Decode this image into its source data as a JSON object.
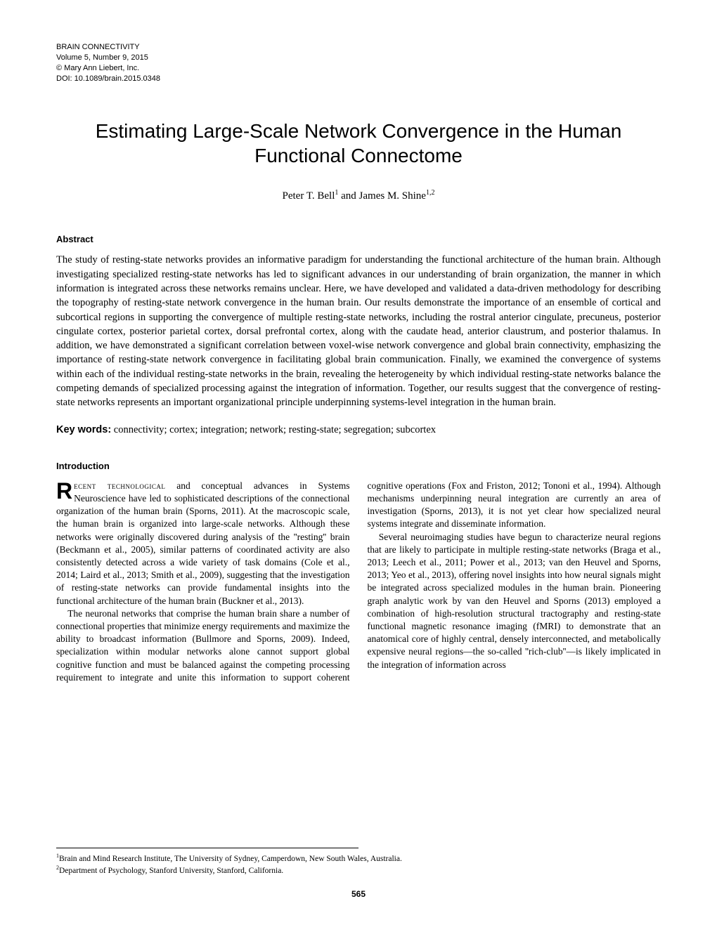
{
  "journal": {
    "name": "BRAIN CONNECTIVITY",
    "volume_line": "Volume 5, Number 9, 2015",
    "publisher": "© Mary Ann Liebert, Inc.",
    "doi": "DOI: 10.1089/brain.2015.0348"
  },
  "title": "Estimating Large-Scale Network Convergence in the Human Functional Connectome",
  "authors_html": "Peter T. Bell¹ and James M. Shine¹,²",
  "authors": {
    "a1_name": "Peter T. Bell",
    "a1_aff": "1",
    "joiner": " and ",
    "a2_name": "James M. Shine",
    "a2_aff": "1,2"
  },
  "abstract": {
    "heading": "Abstract",
    "text": "The study of resting-state networks provides an informative paradigm for understanding the functional architecture of the human brain. Although investigating specialized resting-state networks has led to significant advances in our understanding of brain organization, the manner in which information is integrated across these networks remains unclear. Here, we have developed and validated a data-driven methodology for describing the topography of resting-state network convergence in the human brain. Our results demonstrate the importance of an ensemble of cortical and subcortical regions in supporting the convergence of multiple resting-state networks, including the rostral anterior cingulate, precuneus, posterior cingulate cortex, posterior parietal cortex, dorsal prefrontal cortex, along with the caudate head, anterior claustrum, and posterior thalamus. In addition, we have demonstrated a significant correlation between voxel-wise network convergence and global brain connectivity, emphasizing the importance of resting-state network convergence in facilitating global brain communication. Finally, we examined the convergence of systems within each of the individual resting-state networks in the brain, revealing the heterogeneity by which individual resting-state networks balance the competing demands of specialized processing against the integration of information. Together, our results suggest that the convergence of resting-state networks represents an important organizational principle underpinning systems-level integration in the human brain."
  },
  "keywords": {
    "label": "Key words:",
    "text": " connectivity; cortex; integration; network; resting-state; segregation; subcortex"
  },
  "intro": {
    "heading": "Introduction",
    "dropcap": "R",
    "first_smallcaps": "ecent technological",
    "p1_rest": " and conceptual advances in Systems Neuroscience have led to sophisticated descriptions of the connectional organization of the human brain (Sporns, 2011). At the macroscopic scale, the human brain is organized into large-scale networks. Although these networks were originally discovered during analysis of the ''resting'' brain (Beckmann et al., 2005), similar patterns of coordinated activity are also consistently detected across a wide variety of task domains (Cole et al., 2014; Laird et al., 2013; Smith et al., 2009), suggesting that the investigation of resting-state networks can provide fundamental insights into the functional architecture of the human brain (Buckner et al., 2013).",
    "p2": "The neuronal networks that comprise the human brain share a number of connectional properties that minimize energy requirements and maximize the ability to broadcast information (Bullmore and Sporns, 2009). Indeed, specialization within modular networks alone cannot support global cognitive function and must be balanced against the competing processing requirement to integrate and unite this information to support coherent cognitive operations (Fox and Friston, 2012; Tononi et al., 1994). Although mechanisms underpinning neural integration are currently an area of investigation (Sporns, 2013), it is not yet clear how specialized neural systems integrate and disseminate information.",
    "p3": "Several neuroimaging studies have begun to characterize neural regions that are likely to participate in multiple resting-state networks (Braga et al., 2013; Leech et al., 2011; Power et al., 2013; van den Heuvel and Sporns, 2013; Yeo et al., 2013), offering novel insights into how neural signals might be integrated across specialized modules in the human brain. Pioneering graph analytic work by van den Heuvel and Sporns (2013) employed a combination of high-resolution structural tractography and resting-state functional magnetic resonance imaging (fMRI) to demonstrate that an anatomical core of highly central, densely interconnected, and metabolically expensive neural regions—the so-called ''rich-club''—is likely implicated in the integration of information across"
  },
  "affiliations": {
    "a1": "Brain and Mind Research Institute, The University of Sydney, Camperdown, New South Wales, Australia.",
    "a2": "Department of Psychology, Stanford University, Stanford, California."
  },
  "page_number": "565"
}
